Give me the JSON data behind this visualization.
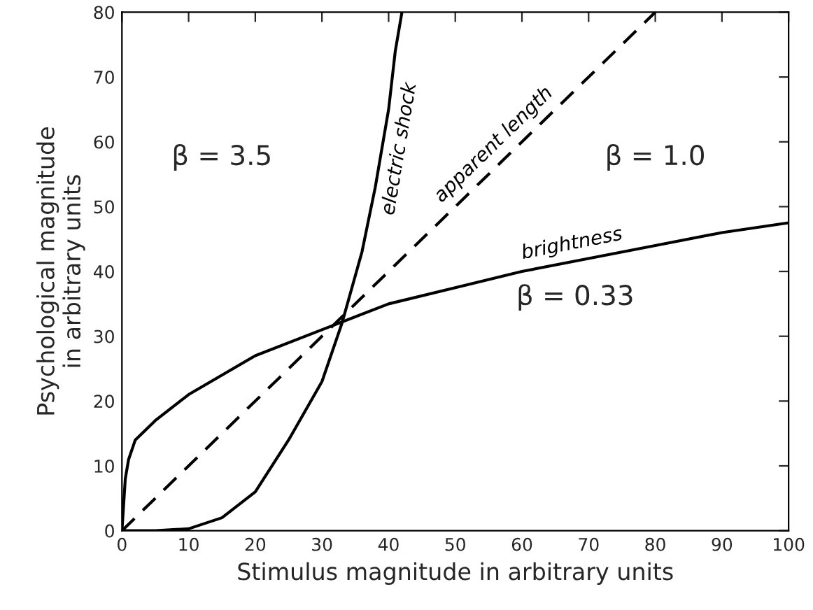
{
  "chart_data": {
    "type": "line",
    "xlabel": "Stimulus magnitude in arbitrary units",
    "ylabel": "Psychological magnitude\nin arbitrary units",
    "xlim": [
      0,
      100
    ],
    "ylim": [
      0,
      80
    ],
    "xticks": [
      0,
      10,
      20,
      30,
      40,
      50,
      60,
      70,
      80,
      90,
      100
    ],
    "yticks": [
      0,
      10,
      20,
      30,
      40,
      50,
      60,
      70,
      80
    ],
    "grid": false,
    "legend": false,
    "marker": "none",
    "series": [
      {
        "name": "electric shock",
        "color": "#000000",
        "line_style": "solid",
        "x": [
          0,
          5,
          10,
          15,
          20,
          25,
          30,
          33,
          36,
          38,
          40,
          41,
          42
        ],
        "values": [
          0,
          0,
          0.3,
          2,
          6,
          14,
          23,
          32,
          43,
          53,
          65,
          74,
          80
        ]
      },
      {
        "name": "apparent length",
        "color": "#000000",
        "line_style": "dashed",
        "x": [
          0,
          20,
          40,
          60,
          80
        ],
        "values": [
          0,
          20,
          40,
          60,
          80
        ]
      },
      {
        "name": "brightness",
        "color": "#000000",
        "line_style": "solid",
        "x": [
          0,
          0.5,
          1,
          2,
          5,
          10,
          20,
          30,
          40,
          50,
          60,
          70,
          80,
          90,
          100
        ],
        "values": [
          0,
          8,
          11,
          14,
          17,
          21,
          27,
          31,
          35,
          37.5,
          40,
          42,
          44,
          46,
          47.5
        ]
      }
    ],
    "annotations": [
      "β = 3.5",
      "β = 1.0",
      "β = 0.33"
    ]
  }
}
